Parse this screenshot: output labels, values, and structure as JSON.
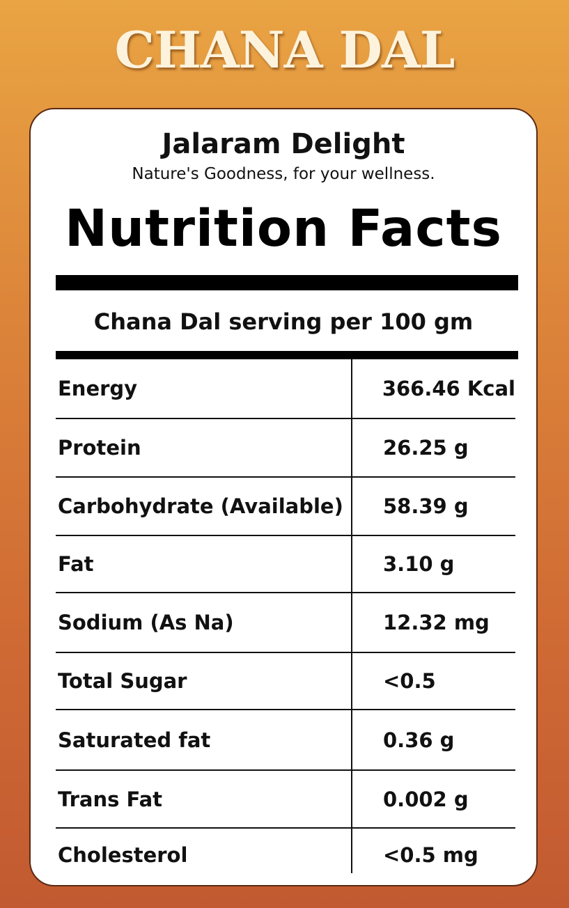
{
  "product_title": "CHANA DAL",
  "brand": {
    "name": "Jalaram Delight",
    "tagline": "Nature's Goodness, for your wellness."
  },
  "label": {
    "heading": "Nutrition Facts",
    "serving": "Chana Dal serving per 100 gm"
  },
  "nutrients": [
    {
      "name": "Energy",
      "value": "366.46 Kcal"
    },
    {
      "name": "Protein",
      "value": "26.25 g"
    },
    {
      "name": "Carbohydrate (Available)",
      "value": "58.39 g"
    },
    {
      "name": "Fat",
      "value": "3.10 g"
    },
    {
      "name": "Sodium (As Na)",
      "value": "12.32 mg"
    },
    {
      "name": "Total Sugar",
      "value": "<0.5"
    },
    {
      "name": "Saturated fat",
      "value": "0.36 g"
    },
    {
      "name": "Trans Fat",
      "value": "0.002 g"
    },
    {
      "name": "Cholesterol",
      "value": "<0.5 mg"
    }
  ]
}
